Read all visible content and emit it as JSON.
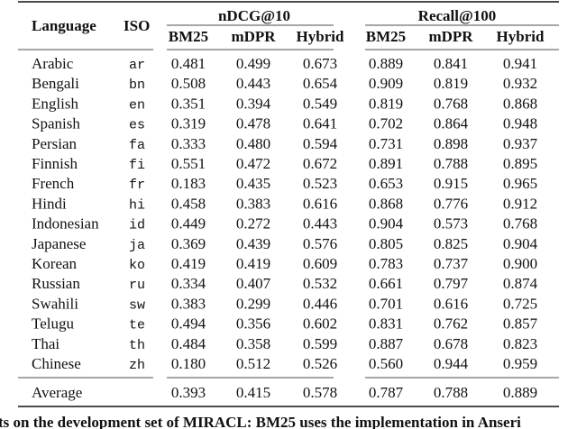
{
  "table": {
    "header": {
      "language": "Language",
      "iso": "ISO",
      "groups": [
        "nDCG@10",
        "Recall@100"
      ],
      "metrics": [
        "BM25",
        "mDPR",
        "Hybrid",
        "BM25",
        "mDPR",
        "Hybrid"
      ]
    },
    "rows": [
      [
        "Arabic",
        "ar",
        "0.481",
        "0.499",
        "0.673",
        "0.889",
        "0.841",
        "0.941"
      ],
      [
        "Bengali",
        "bn",
        "0.508",
        "0.443",
        "0.654",
        "0.909",
        "0.819",
        "0.932"
      ],
      [
        "English",
        "en",
        "0.351",
        "0.394",
        "0.549",
        "0.819",
        "0.768",
        "0.868"
      ],
      [
        "Spanish",
        "es",
        "0.319",
        "0.478",
        "0.641",
        "0.702",
        "0.864",
        "0.948"
      ],
      [
        "Persian",
        "fa",
        "0.333",
        "0.480",
        "0.594",
        "0.731",
        "0.898",
        "0.937"
      ],
      [
        "Finnish",
        "fi",
        "0.551",
        "0.472",
        "0.672",
        "0.891",
        "0.788",
        "0.895"
      ],
      [
        "French",
        "fr",
        "0.183",
        "0.435",
        "0.523",
        "0.653",
        "0.915",
        "0.965"
      ],
      [
        "Hindi",
        "hi",
        "0.458",
        "0.383",
        "0.616",
        "0.868",
        "0.776",
        "0.912"
      ],
      [
        "Indonesian",
        "id",
        "0.449",
        "0.272",
        "0.443",
        "0.904",
        "0.573",
        "0.768"
      ],
      [
        "Japanese",
        "ja",
        "0.369",
        "0.439",
        "0.576",
        "0.805",
        "0.825",
        "0.904"
      ],
      [
        "Korean",
        "ko",
        "0.419",
        "0.419",
        "0.609",
        "0.783",
        "0.737",
        "0.900"
      ],
      [
        "Russian",
        "ru",
        "0.334",
        "0.407",
        "0.532",
        "0.661",
        "0.797",
        "0.874"
      ],
      [
        "Swahili",
        "sw",
        "0.383",
        "0.299",
        "0.446",
        "0.701",
        "0.616",
        "0.725"
      ],
      [
        "Telugu",
        "te",
        "0.494",
        "0.356",
        "0.602",
        "0.831",
        "0.762",
        "0.857"
      ],
      [
        "Thai",
        "th",
        "0.484",
        "0.358",
        "0.599",
        "0.887",
        "0.678",
        "0.823"
      ],
      [
        "Chinese",
        "zh",
        "0.180",
        "0.512",
        "0.526",
        "0.560",
        "0.944",
        "0.959"
      ]
    ],
    "average": {
      "label": "Average",
      "values": [
        "0.393",
        "0.415",
        "0.578",
        "0.787",
        "0.788",
        "0.889"
      ]
    }
  },
  "caption": "ts on the development set of MIRACL: BM25 uses the implementation in Anseri"
}
